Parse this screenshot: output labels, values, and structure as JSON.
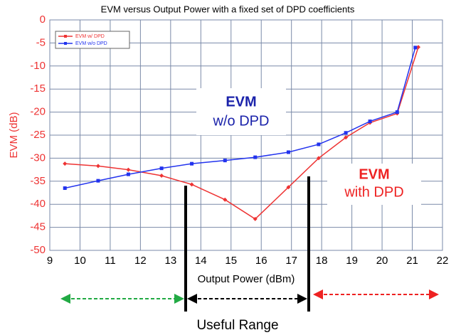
{
  "chart_data": {
    "type": "line",
    "title": "EVM versus Output Power with a fixed set of DPD coefficients",
    "xlabel": "Output Power (dBm)",
    "ylabel": "EVM (dB)",
    "xlim": [
      9,
      22
    ],
    "xticks": [
      9,
      10,
      11,
      12,
      13,
      14,
      15,
      16,
      17,
      18,
      19,
      20,
      21,
      22
    ],
    "ylim": [
      -50,
      0
    ],
    "yticks": [
      0,
      -5,
      -10,
      -15,
      -20,
      -25,
      -30,
      -35,
      -40,
      -45,
      -50
    ],
    "grid": true,
    "legend": "upper left",
    "series": [
      {
        "name": "EVM w/ DPD",
        "color": "#ee3333",
        "x": [
          9.5,
          10.6,
          11.6,
          12.7,
          13.7,
          14.8,
          15.8,
          16.9,
          17.9,
          18.8,
          19.6,
          20.5,
          21.2
        ],
        "values": [
          -31.2,
          -31.7,
          -32.5,
          -33.8,
          -35.7,
          -39,
          -43.2,
          -36.3,
          -30,
          -25.5,
          -22.3,
          -20.3,
          -5.9
        ]
      },
      {
        "name": "EVM w/o DPD",
        "color": "#2233ee",
        "x": [
          9.5,
          10.6,
          11.6,
          12.7,
          13.7,
          14.8,
          15.8,
          16.9,
          17.9,
          18.8,
          19.6,
          20.5,
          21.1
        ],
        "values": [
          -36.5,
          -34.9,
          -33.5,
          -32.2,
          -31.2,
          -30.5,
          -29.8,
          -28.7,
          -27,
          -24.5,
          -22,
          -20,
          -6
        ]
      }
    ],
    "annotations": [
      "EVM",
      "w/o DPD",
      "EVM",
      "with DPD",
      "Useful Range"
    ]
  }
}
